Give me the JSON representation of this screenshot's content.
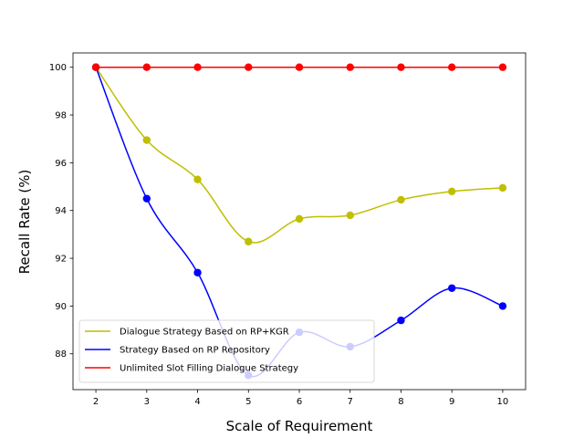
{
  "chart_data": {
    "type": "line",
    "title": "",
    "xlabel": "Scale of Requirement",
    "ylabel": "Recall Rate (%)",
    "x": [
      2,
      3,
      4,
      5,
      6,
      7,
      8,
      9,
      10
    ],
    "xlim": [
      1.55,
      10.45
    ],
    "ylim": [
      86.5,
      100.6
    ],
    "x_ticks": [
      2,
      3,
      4,
      5,
      6,
      7,
      8,
      9,
      10
    ],
    "y_ticks": [
      88,
      90,
      92,
      94,
      96,
      98,
      100
    ],
    "grid": false,
    "legend_position": "lower-left",
    "series": [
      {
        "name": "Dialogue Strategy Based on RP+KGR",
        "color": "#bfbf00",
        "values": [
          100,
          96.95,
          95.3,
          92.7,
          93.65,
          93.8,
          94.45,
          94.8,
          94.95
        ]
      },
      {
        "name": "Strategy Based on RP Repository",
        "color": "#0000ff",
        "values": [
          100,
          94.5,
          91.4,
          87.1,
          88.9,
          88.3,
          89.4,
          90.75,
          90.0
        ]
      },
      {
        "name": "Unlimited Slot Filling Dialogue Strategy",
        "color": "#ff0000",
        "values": [
          100,
          100,
          100,
          100,
          100,
          100,
          100,
          100,
          100
        ]
      }
    ]
  }
}
